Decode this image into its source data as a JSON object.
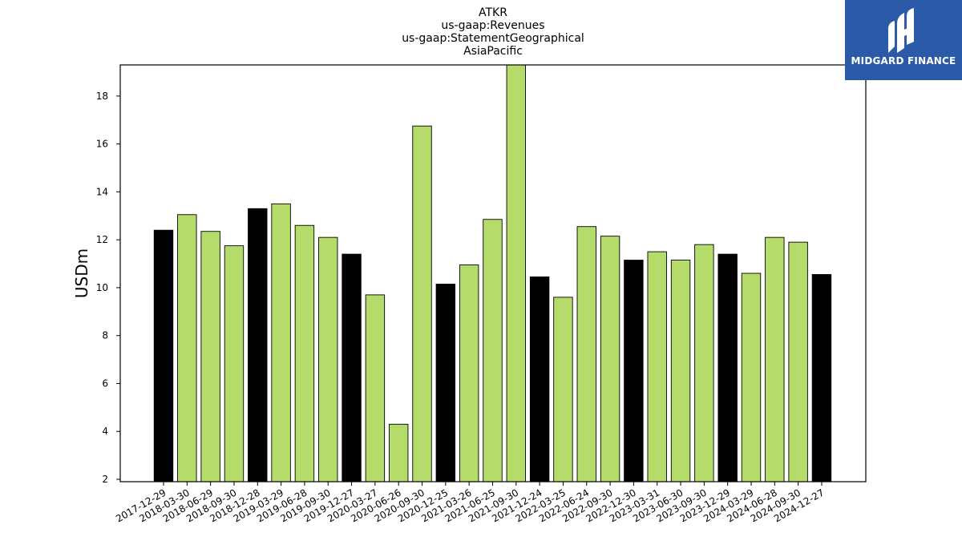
{
  "chart_data": {
    "type": "bar",
    "title_lines": [
      "ATKR",
      "us-gaap:Revenues",
      "us-gaap:StatementGeographical",
      "AsiaPacific"
    ],
    "xlabel": "",
    "ylabel": "USDm",
    "ylim": [
      1.9,
      19.3
    ],
    "yticks": [
      2,
      4,
      6,
      8,
      10,
      12,
      14,
      16,
      18
    ],
    "grid": false,
    "categories": [
      "2017-12-29",
      "2018-03-30",
      "2018-06-29",
      "2018-09-30",
      "2018-12-28",
      "2019-03-29",
      "2019-06-28",
      "2019-09-30",
      "2019-12-27",
      "2020-03-27",
      "2020-06-26",
      "2020-09-30",
      "2020-12-25",
      "2021-03-26",
      "2021-06-25",
      "2021-09-30",
      "2021-12-24",
      "2022-03-25",
      "2022-06-24",
      "2022-09-30",
      "2022-12-30",
      "2023-03-31",
      "2023-06-30",
      "2023-09-30",
      "2023-12-29",
      "2024-03-29",
      "2024-06-28",
      "2024-09-30",
      "2024-12-27"
    ],
    "values": [
      12.4,
      13.05,
      12.35,
      11.75,
      13.3,
      13.5,
      12.6,
      12.1,
      11.4,
      9.7,
      4.3,
      16.75,
      10.15,
      10.95,
      12.85,
      19.3,
      10.45,
      9.6,
      12.55,
      12.15,
      11.15,
      11.5,
      11.15,
      11.8,
      11.4,
      10.6,
      12.1,
      11.9,
      10.55
    ],
    "bar_colors": [
      "#000000",
      "#b5dc6b",
      "#b5dc6b",
      "#b5dc6b",
      "#000000",
      "#b5dc6b",
      "#b5dc6b",
      "#b5dc6b",
      "#000000",
      "#b5dc6b",
      "#b5dc6b",
      "#b5dc6b",
      "#000000",
      "#b5dc6b",
      "#b5dc6b",
      "#b5dc6b",
      "#000000",
      "#b5dc6b",
      "#b5dc6b",
      "#b5dc6b",
      "#000000",
      "#b5dc6b",
      "#b5dc6b",
      "#b5dc6b",
      "#000000",
      "#b5dc6b",
      "#b5dc6b",
      "#b5dc6b",
      "#000000"
    ]
  },
  "logo": {
    "text": "MIDGARD FINANCE",
    "background": "#2a5aa8",
    "icon": "midgard-mark-icon"
  }
}
